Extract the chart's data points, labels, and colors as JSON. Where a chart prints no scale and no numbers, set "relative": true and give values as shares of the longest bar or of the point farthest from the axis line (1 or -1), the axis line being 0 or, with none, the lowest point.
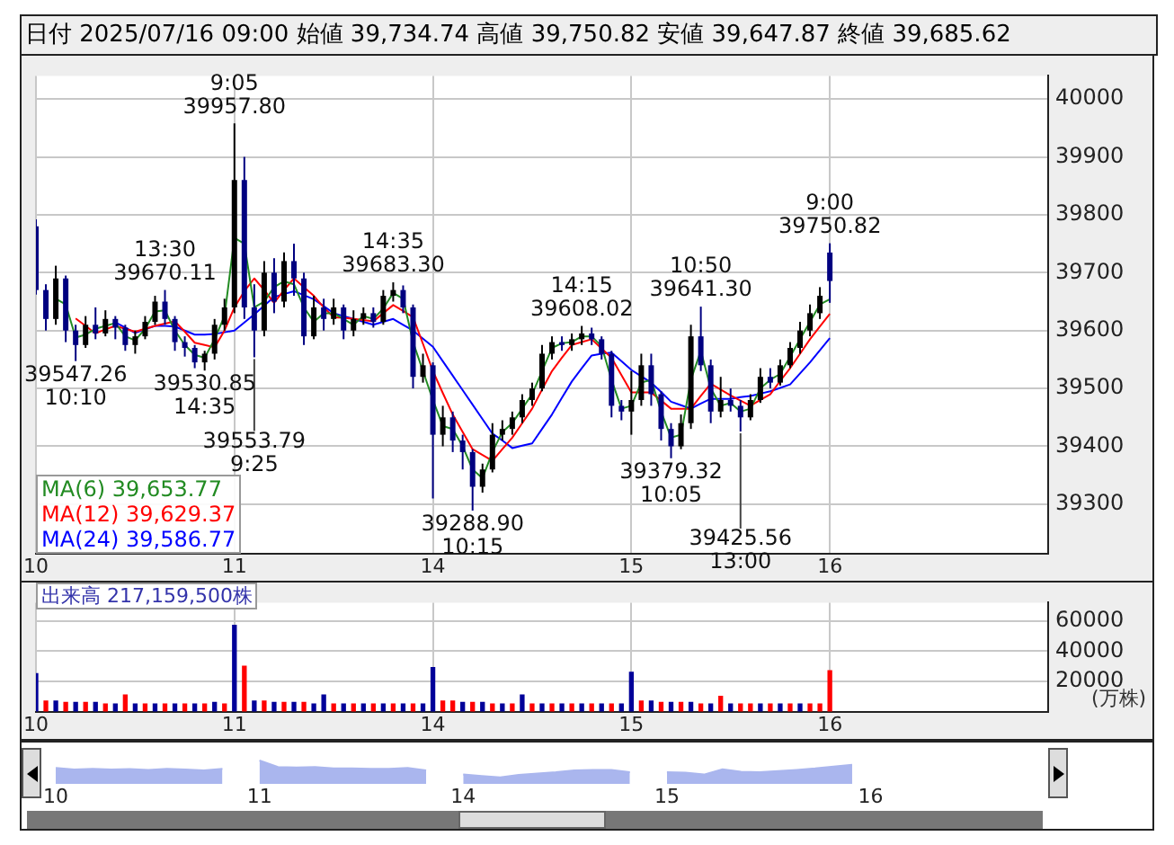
{
  "chart_data": [
    {
      "type": "candlestick",
      "title": "日付 2025/07/16 09:00 始値 39,734.74 高値 39,750.82 安値 39,647.87 終値 39,685.62",
      "categories": [
        "10",
        null,
        null,
        null,
        null,
        null,
        null,
        null,
        null,
        null,
        null,
        null,
        null,
        null,
        null,
        null,
        null,
        null,
        null,
        null,
        "11",
        null,
        null,
        null,
        null,
        null,
        null,
        null,
        null,
        null,
        null,
        null,
        null,
        null,
        null,
        null,
        null,
        null,
        null,
        null,
        "14",
        null,
        null,
        null,
        null,
        null,
        null,
        null,
        null,
        null,
        null,
        null,
        null,
        null,
        null,
        null,
        null,
        null,
        null,
        null,
        "15",
        null,
        null,
        null,
        null,
        null,
        null,
        null,
        null,
        null,
        null,
        null,
        null,
        null,
        null,
        null,
        null,
        null,
        null,
        null,
        "16",
        null,
        null,
        null,
        null,
        null,
        null,
        null,
        null,
        null,
        null,
        null,
        null,
        null,
        null,
        null,
        null,
        null,
        null,
        null,
        null,
        null,
        null
      ],
      "ohlc": [
        [
          39780,
          39792,
          39662,
          39670
        ],
        [
          39670,
          39680,
          39600,
          39620
        ],
        [
          39620,
          39712,
          39610,
          39690
        ],
        [
          39690,
          39695,
          39580,
          39600
        ],
        [
          39600,
          39610,
          39547.26,
          39575
        ],
        [
          39575,
          39625,
          39570,
          39610
        ],
        [
          39610,
          39640,
          39585,
          39595
        ],
        [
          39595,
          39635,
          39590,
          39620
        ],
        [
          39620,
          39625,
          39585,
          39605
        ],
        [
          39605,
          39610,
          39565,
          39575
        ],
        [
          39575,
          39600,
          39560,
          39590
        ],
        [
          39590,
          39625,
          39585,
          39615
        ],
        [
          39615,
          39660,
          39610,
          39650
        ],
        [
          39650,
          39670.11,
          39610,
          39620
        ],
        [
          39620,
          39625,
          39565,
          39580
        ],
        [
          39580,
          39590,
          39555,
          39570
        ],
        [
          39570,
          39575,
          39535,
          39545
        ],
        [
          39545,
          39565,
          39530.85,
          39560
        ],
        [
          39560,
          39620,
          39550,
          39610
        ],
        [
          39610,
          39655,
          39600,
          39640
        ],
        [
          39640,
          39957.8,
          39630,
          39860
        ],
        [
          39860,
          39900,
          39620,
          39640
        ],
        [
          39640,
          39680,
          39553.79,
          39600
        ],
        [
          39600,
          39720,
          39590,
          39700
        ],
        [
          39700,
          39725,
          39630,
          39650
        ],
        [
          39650,
          39735,
          39640,
          39720
        ],
        [
          39720,
          39750,
          39660,
          39690
        ],
        [
          39690,
          39700,
          39575,
          39590
        ],
        [
          39590,
          39660,
          39585,
          39640
        ],
        [
          39640,
          39655,
          39600,
          39620
        ],
        [
          39620,
          39655,
          39610,
          39640
        ],
        [
          39640,
          39645,
          39585,
          39600
        ],
        [
          39600,
          39635,
          39590,
          39620
        ],
        [
          39620,
          39640,
          39610,
          39630
        ],
        [
          39630,
          39640,
          39605,
          39615
        ],
        [
          39615,
          39670,
          39610,
          39660
        ],
        [
          39660,
          39683.3,
          39650,
          39670
        ],
        [
          39670,
          39678,
          39630,
          39640
        ],
        [
          39640,
          39645,
          39500,
          39520
        ],
        [
          39520,
          39560,
          39510,
          39540
        ],
        [
          39540,
          39545,
          39310,
          39420
        ],
        [
          39420,
          39470,
          39400,
          39450
        ],
        [
          39450,
          39460,
          39390,
          39410
        ],
        [
          39410,
          39420,
          39360,
          39390
        ],
        [
          39390,
          39395,
          39288.9,
          39330
        ],
        [
          39330,
          39370,
          39320,
          39360
        ],
        [
          39360,
          39440,
          39355,
          39420
        ],
        [
          39420,
          39445,
          39410,
          39430
        ],
        [
          39430,
          39460,
          39420,
          39450
        ],
        [
          39450,
          39490,
          39440,
          39480
        ],
        [
          39480,
          39510,
          39470,
          39500
        ],
        [
          39500,
          39575,
          39495,
          39560
        ],
        [
          39560,
          39590,
          39550,
          39580
        ],
        [
          39580,
          39590,
          39565,
          39575
        ],
        [
          39575,
          39595,
          39565,
          39585
        ],
        [
          39585,
          39608.02,
          39575,
          39595
        ],
        [
          39595,
          39605,
          39575,
          39585
        ],
        [
          39585,
          39590,
          39550,
          39560
        ],
        [
          39560,
          39565,
          39450,
          39470
        ],
        [
          39470,
          39480,
          39445,
          39460
        ],
        [
          39460,
          39530,
          39420,
          39480
        ],
        [
          39480,
          39560,
          39470,
          39540
        ],
        [
          39540,
          39560,
          39470,
          39490
        ],
        [
          39490,
          39495,
          39410,
          39430
        ],
        [
          39430,
          39440,
          39379.32,
          39400
        ],
        [
          39400,
          39455,
          39395,
          39440
        ],
        [
          39440,
          39610,
          39430,
          39590
        ],
        [
          39590,
          39641.3,
          39530,
          39540
        ],
        [
          39540,
          39550,
          39440,
          39460
        ],
        [
          39460,
          39520,
          39450,
          39480
        ],
        [
          39480,
          39500,
          39460,
          39470
        ],
        [
          39470,
          39480,
          39425.56,
          39450
        ],
        [
          39450,
          39490,
          39445,
          39480
        ],
        [
          39480,
          39535,
          39475,
          39520
        ],
        [
          39520,
          39535,
          39500,
          39510
        ],
        [
          39510,
          39550,
          39505,
          39540
        ],
        [
          39540,
          39580,
          39535,
          39570
        ],
        [
          39570,
          39615,
          39560,
          39600
        ],
        [
          39600,
          39645,
          39590,
          39630
        ],
        [
          39630,
          39675,
          39620,
          39660
        ],
        [
          39734.74,
          39750.82,
          39647.87,
          39685.62
        ],
        null,
        null,
        null,
        null,
        null,
        null,
        null,
        null,
        null,
        null,
        null,
        null,
        null,
        null,
        null,
        null,
        null,
        null,
        null,
        null,
        null,
        null
      ],
      "colors": [
        "#000080",
        "#000080",
        "#000000",
        "#000080",
        "#000080",
        "#000000",
        "#000080",
        "#000000",
        "#000080",
        "#000080",
        "#000000",
        "#000000",
        "#000000",
        "#000080",
        "#000080",
        "#000080",
        "#000080",
        "#000000",
        "#000000",
        "#000000",
        "#000000",
        "#000080",
        "#000080",
        "#000000",
        "#000080",
        "#000000",
        "#000080",
        "#000080",
        "#000000",
        "#000080",
        "#000000",
        "#000080",
        "#000000",
        "#000000",
        "#000080",
        "#000000",
        "#000000",
        "#000080",
        "#000080",
        "#000000",
        "#000080",
        "#000000",
        "#000080",
        "#000080",
        "#000080",
        "#000000",
        "#000000",
        "#000000",
        "#000000",
        "#000000",
        "#000000",
        "#000000",
        "#000000",
        "#000080",
        "#000000",
        "#000000",
        "#000080",
        "#000080",
        "#000080",
        "#000080",
        "#000000",
        "#000000",
        "#000080",
        "#000080",
        "#000080",
        "#000000",
        "#000000",
        "#000080",
        "#000080",
        "#000000",
        "#000080",
        "#000080",
        "#000000",
        "#000000",
        "#000080",
        "#000000",
        "#000000",
        "#000000",
        "#000000",
        "#000000",
        "#000080",
        null,
        null,
        null,
        null,
        null,
        null,
        null,
        null,
        null,
        null,
        null,
        null,
        null,
        null,
        null,
        null,
        null,
        null,
        null,
        null,
        null,
        null
      ],
      "series": [
        {
          "type": "line",
          "name": "MA(6) 39,653.77",
          "color": "#228b22",
          "values": [
            null,
            null,
            39655,
            39645,
            39588,
            39593,
            39603,
            39608,
            39613,
            39590,
            39583,
            39603,
            39633,
            39635,
            39600,
            39575,
            39558,
            39553,
            39585,
            39625,
            39760,
            39750,
            39640,
            39650,
            39675,
            39685,
            39680,
            39640,
            39615,
            39630,
            39630,
            39620,
            39610,
            39625,
            39620,
            39638,
            39665,
            39655,
            39580,
            39530,
            39480,
            39435,
            39430,
            39400,
            39360,
            39345,
            39390,
            39425,
            39440,
            39465,
            39490,
            39530,
            39570,
            39578,
            39580,
            39590,
            39590,
            39573,
            39515,
            39465,
            39470,
            39510,
            39515,
            39460,
            39415,
            39420,
            39515,
            39565,
            39500,
            39470,
            39475,
            39460,
            39465,
            39500,
            39515,
            39525,
            39555,
            39585,
            39615,
            39645,
            39654,
            null,
            null,
            null,
            null,
            null,
            null,
            null,
            null,
            null,
            null,
            null,
            null,
            null,
            null,
            null,
            null,
            null,
            null,
            null,
            null,
            null,
            null
          ]
        },
        {
          "type": "line",
          "name": "MA(12) 39,629.37",
          "color": "#ff0000",
          "values": [
            null,
            null,
            null,
            null,
            39621,
            39608,
            39595,
            39602,
            39608,
            39603,
            39598,
            39603,
            39608,
            39612,
            39616,
            39598,
            39579,
            39575,
            39571,
            39600,
            39640,
            39668,
            39690,
            39670,
            39648,
            39670,
            39690,
            39675,
            39660,
            39640,
            39623,
            39622,
            39620,
            39618,
            39616,
            39630,
            39644,
            39634,
            39623,
            39577,
            39530,
            39492,
            39455,
            39425,
            39395,
            39385,
            39375,
            39395,
            39415,
            39440,
            39465,
            39498,
            39530,
            39553,
            39575,
            39580,
            39585,
            39569,
            39553,
            39523,
            39493,
            39493,
            39493,
            39479,
            39465,
            39465,
            39465,
            39487,
            39508,
            39498,
            39488,
            39479,
            39470,
            39480,
            39490,
            39513,
            39535,
            39560,
            39585,
            39607,
            39629,
            null,
            null,
            null,
            null,
            null,
            null,
            null,
            null,
            null,
            null,
            null,
            null,
            null,
            null,
            null,
            null,
            null,
            null,
            null,
            null,
            null,
            null
          ]
        },
        {
          "type": "line",
          "name": "MA(24) 39,586.77",
          "color": "#0000ff",
          "values": [
            null,
            null,
            null,
            null,
            null,
            null,
            null,
            null,
            39614,
            39605,
            39596,
            39602,
            39608,
            39608,
            39607,
            39600,
            39593,
            39593,
            39594,
            39597,
            39600,
            39614,
            39628,
            39643,
            39658,
            39663,
            39668,
            39661,
            39654,
            39642,
            39630,
            39625,
            39620,
            39615,
            39610,
            39615,
            39620,
            39610,
            39600,
            39586,
            39572,
            39547,
            39522,
            39497,
            39472,
            39447,
            39422,
            39410,
            39397,
            39401,
            39405,
            39430,
            39455,
            39484,
            39512,
            39535,
            39557,
            39560,
            39562,
            39547,
            39532,
            39521,
            39510,
            39494,
            39477,
            39471,
            39465,
            39474,
            39482,
            39482,
            39482,
            39485,
            39487,
            39491,
            39495,
            39501,
            39507,
            39526,
            39545,
            39566,
            39587,
            null,
            null,
            null,
            null,
            null,
            null,
            null,
            null,
            null,
            null,
            null,
            null,
            null,
            null,
            null,
            null,
            null,
            null,
            null,
            null,
            null,
            null
          ]
        }
      ],
      "ylim": [
        39215,
        40040
      ],
      "yticks": [
        39300,
        39400,
        39500,
        39600,
        39700,
        39800,
        39900,
        40000
      ],
      "grid": true,
      "legend": "bottom left",
      "annotations": [
        {
          "text": "9:05\n39957.80",
          "y": 39957.8
        },
        {
          "text": "13:30\n39670.11",
          "y": 39670.11
        },
        {
          "text": "39547.26\n10:10",
          "y": 39547.26
        },
        {
          "text": "39530.85\n14:35",
          "y": 39530.85
        },
        {
          "text": "39553.79\n9:25",
          "y": 39553.79
        },
        {
          "text": "14:35\n39683.30",
          "y": 39683.3
        },
        {
          "text": "39288.90\n10:15",
          "y": 39288.9
        },
        {
          "text": "14:15\n39608.02",
          "y": 39608.02
        },
        {
          "text": "10:50\n39641.30",
          "y": 39641.3
        },
        {
          "text": "39379.32\n10:05",
          "y": 39379.32
        },
        {
          "text": "39425.56\n13:00",
          "y": 39425.56
        },
        {
          "text": "9:00\n39750.82",
          "y": 39750.82
        }
      ]
    },
    {
      "type": "bar",
      "title": "出来高 217,159,500株",
      "ylabel": "(万株)",
      "categories": [
        "10",
        null,
        null,
        null,
        null,
        null,
        null,
        null,
        null,
        null,
        null,
        null,
        null,
        null,
        null,
        null,
        null,
        null,
        null,
        null,
        "11",
        null,
        null,
        null,
        null,
        null,
        null,
        null,
        null,
        null,
        null,
        null,
        null,
        null,
        null,
        null,
        null,
        null,
        null,
        null,
        "14",
        null,
        null,
        null,
        null,
        null,
        null,
        null,
        null,
        null,
        null,
        null,
        null,
        null,
        null,
        null,
        null,
        null,
        null,
        null,
        "15",
        null,
        null,
        null,
        null,
        null,
        null,
        null,
        null,
        null,
        null,
        null,
        null,
        null,
        null,
        null,
        null,
        null,
        null,
        null,
        "16",
        null,
        null,
        null,
        null,
        null,
        null,
        null,
        null,
        null,
        null,
        null,
        null,
        null,
        null,
        null,
        null,
        null,
        null,
        null,
        null,
        null,
        null
      ],
      "values": [
        25000,
        7000,
        7000,
        6000,
        6000,
        6000,
        6000,
        5000,
        5000,
        11000,
        5000,
        5000,
        5000,
        5000,
        5000,
        5000,
        5000,
        5000,
        6000,
        5000,
        57000,
        30000,
        7000,
        7000,
        6000,
        6000,
        6000,
        6000,
        5000,
        11000,
        5000,
        5000,
        5000,
        5000,
        5000,
        5000,
        5000,
        5000,
        5000,
        5000,
        29000,
        7000,
        7000,
        6000,
        6000,
        6000,
        5000,
        5000,
        5000,
        11000,
        5000,
        5000,
        5000,
        5000,
        5000,
        5000,
        5000,
        5000,
        5000,
        5000,
        26000,
        7000,
        7000,
        6000,
        6000,
        6000,
        6000,
        5000,
        5000,
        10000,
        5000,
        5000,
        5000,
        5000,
        5000,
        5000,
        5000,
        5000,
        5000,
        5000,
        27000,
        null,
        null,
        null,
        null,
        null,
        null,
        null,
        null,
        null,
        null,
        null,
        null,
        null,
        null,
        null,
        null,
        null,
        null,
        null,
        null,
        null,
        null
      ],
      "colors": [
        "#000099",
        "#ff0000",
        "#000099",
        "#ff0000",
        "#000099",
        "#ff0000",
        "#000099",
        "#ff0000",
        "#000099",
        "#ff0000",
        "#000099",
        "#ff0000",
        "#000099",
        "#ff0000",
        "#000099",
        "#ff0000",
        "#000099",
        "#ff0000",
        "#000099",
        "#ff0000",
        "#000099",
        "#ff0000",
        "#000099",
        "#ff0000",
        "#000099",
        "#ff0000",
        "#000099",
        "#ff0000",
        "#000099",
        "#000099",
        "#ff0000",
        "#000099",
        "#ff0000",
        "#000099",
        "#ff0000",
        "#000099",
        "#ff0000",
        "#000099",
        "#ff0000",
        "#000099",
        "#000099",
        "#ff0000",
        "#ff0000",
        "#000099",
        "#ff0000",
        "#000099",
        "#ff0000",
        "#000099",
        "#ff0000",
        "#000099",
        "#ff0000",
        "#000099",
        "#ff0000",
        "#000099",
        "#ff0000",
        "#000099",
        "#ff0000",
        "#000099",
        "#ff0000",
        "#000099",
        "#000099",
        "#ff0000",
        "#000099",
        "#ff0000",
        "#000099",
        "#ff0000",
        "#000099",
        "#ff0000",
        "#000099",
        "#ff0000",
        "#000099",
        "#ff0000",
        "#ff0000",
        "#000099",
        "#ff0000",
        "#000099",
        "#ff0000",
        "#000099",
        "#ff0000",
        "#ff0000",
        "#ff0000",
        null,
        null,
        null,
        null,
        null,
        null,
        null,
        null,
        null,
        null,
        null,
        null,
        null,
        null,
        null,
        null,
        null,
        null,
        null,
        null,
        null,
        null
      ],
      "ylim": [
        0,
        72000
      ],
      "yticks": [
        20000,
        40000,
        60000
      ],
      "grid": true
    },
    {
      "type": "area",
      "relative": true,
      "color": "#aab6ee",
      "categories": [
        "10",
        null,
        null,
        null,
        null,
        null,
        null,
        null,
        null,
        null,
        null,
        "11",
        null,
        null,
        null,
        null,
        null,
        null,
        null,
        null,
        null,
        null,
        "14",
        null,
        null,
        null,
        null,
        null,
        null,
        null,
        null,
        null,
        null,
        "15",
        null,
        null,
        null,
        null,
        null,
        null,
        null,
        null,
        null,
        null,
        "16",
        null,
        null,
        null,
        null,
        null,
        null,
        null,
        null,
        null
      ],
      "values": [
        0.68,
        0.62,
        0.64,
        0.62,
        0.63,
        0.6,
        0.64,
        0.62,
        0.58,
        0.64,
        null,
        1,
        0.72,
        0.7,
        0.72,
        0.66,
        0.66,
        0.64,
        0.64,
        0.68,
        0.58,
        null,
        0.4,
        0.34,
        0.28,
        0.38,
        0.44,
        0.5,
        0.58,
        0.6,
        0.6,
        0.5,
        null,
        0.5,
        0.48,
        0.4,
        0.62,
        0.52,
        0.5,
        0.55,
        0.6,
        0.66,
        0.74,
        0.82,
        null,
        null,
        null,
        null,
        null,
        null,
        null,
        null,
        null,
        null
      ]
    }
  ]
}
